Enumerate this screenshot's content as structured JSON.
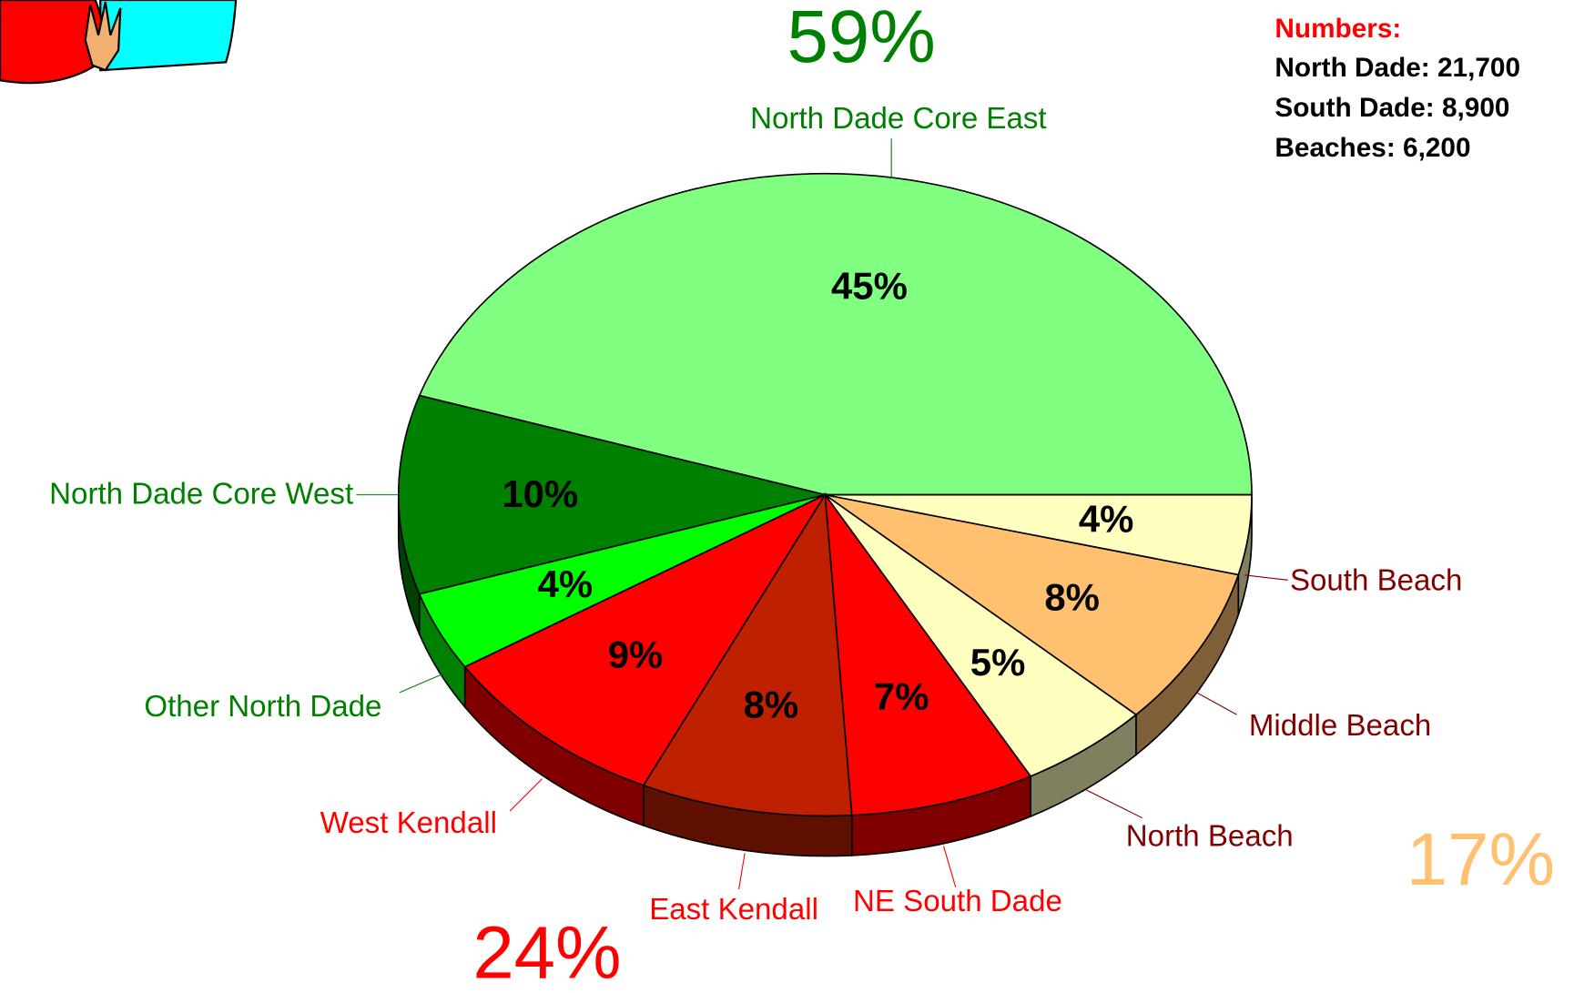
{
  "chart_data": {
    "type": "pie",
    "categories": [
      "North Dade Core East",
      "North Dade Core West",
      "Other North Dade",
      "West Kendall",
      "East Kendall",
      "NE South Dade",
      "North Beach",
      "Middle Beach",
      "South Beach"
    ],
    "values": [
      45,
      10,
      4,
      9,
      8,
      7,
      5,
      8,
      4
    ],
    "value_labels": [
      "45%",
      "10%",
      "4%",
      "9%",
      "8%",
      "7%",
      "5%",
      "8%",
      "4%"
    ],
    "colors": [
      "#80ff80",
      "#008000",
      "#00ff00",
      "#ff0000",
      "#bf2000",
      "#ff0000",
      "#ffffc0",
      "#ffc070",
      "#ffffc0"
    ],
    "label_colors": [
      "#008000",
      "#008000",
      "#008000",
      "#ff0000",
      "#ff0000",
      "#ff0000",
      "#800000",
      "#800000",
      "#800000"
    ],
    "annotations": [
      {
        "text": "59%",
        "color": "#008000"
      },
      {
        "text": "24%",
        "color": "#ff0000"
      },
      {
        "text": "17%",
        "color": "#ffc070"
      }
    ],
    "notes": {
      "title": "Numbers:",
      "title_color": "#ff0000",
      "lines": [
        "North Dade: 21,700",
        "South Dade: 8,900",
        "Beaches: 6,200"
      ]
    }
  }
}
